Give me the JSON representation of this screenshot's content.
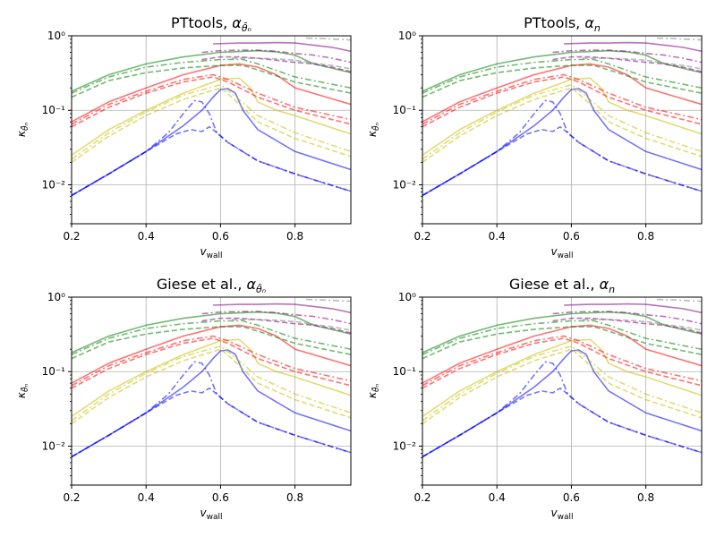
{
  "chart_data": [
    {
      "type": "line",
      "title_text": "PTtools, ",
      "title_math": "α",
      "title_sub": "θ̄ₙ",
      "xlabel_main": "v",
      "xlabel_sub": "wall",
      "ylabel_main": "κ",
      "ylabel_sub": "θ̄ₙ",
      "xlim": [
        0.2,
        0.95
      ],
      "ylim": [
        0.003,
        1.0
      ],
      "yscale": "log",
      "grid": true,
      "xticks": [
        "0.2",
        "0.4",
        "0.6",
        "0.8"
      ],
      "yticks": [
        "10⁻²",
        "10⁻¹",
        "10⁰"
      ]
    },
    {
      "type": "line",
      "title_text": "PTtools, ",
      "title_math": "α",
      "title_sub": "n",
      "xlabel_main": "v",
      "xlabel_sub": "wall",
      "ylabel_main": "κ",
      "ylabel_sub": "θ̄ₙ",
      "xlim": [
        0.2,
        0.95
      ],
      "ylim": [
        0.003,
        1.0
      ],
      "yscale": "log",
      "grid": true,
      "xticks": [
        "0.2",
        "0.4",
        "0.6",
        "0.8"
      ],
      "yticks": [
        "10⁻²",
        "10⁻¹",
        "10⁰"
      ]
    },
    {
      "type": "line",
      "title_text": "Giese et al., ",
      "title_math": "α",
      "title_sub": "θ̄ₙ",
      "xlabel_main": "v",
      "xlabel_sub": "wall",
      "ylabel_main": "κ",
      "ylabel_sub": "θ̄ₙ",
      "xlim": [
        0.2,
        0.95
      ],
      "ylim": [
        0.003,
        1.0
      ],
      "yscale": "log",
      "grid": true,
      "xticks": [
        "0.2",
        "0.4",
        "0.6",
        "0.8"
      ],
      "yticks": [
        "10⁻²",
        "10⁻¹",
        "10⁰"
      ]
    },
    {
      "type": "line",
      "title_text": "Giese et al., ",
      "title_math": "α",
      "title_sub": "n",
      "xlabel_main": "v",
      "xlabel_sub": "wall",
      "ylabel_main": "κ",
      "ylabel_sub": "θ̄ₙ",
      "xlim": [
        0.2,
        0.95
      ],
      "ylim": [
        0.003,
        1.0
      ],
      "yscale": "log",
      "grid": true,
      "xticks": [
        "0.2",
        "0.4",
        "0.6",
        "0.8"
      ],
      "yticks": [
        "10⁻²",
        "10⁻¹",
        "10⁰"
      ]
    }
  ],
  "series_families": [
    {
      "color": "#0000ff",
      "curves": [
        {
          "style": "solid",
          "x": [
            0.2,
            0.3,
            0.4,
            0.5,
            0.55,
            0.58,
            0.6,
            0.62,
            0.64,
            0.66,
            0.7,
            0.8,
            0.95
          ],
          "y": [
            0.0072,
            0.014,
            0.028,
            0.062,
            0.1,
            0.15,
            0.19,
            0.195,
            0.17,
            0.1,
            0.055,
            0.028,
            0.016
          ]
        },
        {
          "style": "dashed",
          "x": [
            0.2,
            0.3,
            0.4,
            0.48,
            0.52,
            0.55,
            0.57,
            0.59,
            0.62,
            0.7,
            0.8,
            0.95
          ],
          "y": [
            0.0072,
            0.014,
            0.028,
            0.048,
            0.055,
            0.052,
            0.06,
            0.05,
            0.037,
            0.021,
            0.014,
            0.0082
          ]
        },
        {
          "style": "dashdot",
          "x": [
            0.2,
            0.3,
            0.4,
            0.46,
            0.5,
            0.53,
            0.55,
            0.57,
            0.59,
            0.62,
            0.7,
            0.8,
            0.95
          ],
          "y": [
            0.0072,
            0.014,
            0.028,
            0.05,
            0.09,
            0.135,
            0.13,
            0.09,
            0.05,
            0.037,
            0.021,
            0.014,
            0.0082
          ]
        }
      ]
    },
    {
      "color": "#c8c000",
      "curves": [
        {
          "style": "solid",
          "x": [
            0.2,
            0.3,
            0.4,
            0.5,
            0.6,
            0.65,
            0.68,
            0.7,
            0.75,
            0.8,
            0.95
          ],
          "y": [
            0.025,
            0.055,
            0.1,
            0.17,
            0.26,
            0.27,
            0.2,
            0.13,
            0.1,
            0.085,
            0.048
          ]
        },
        {
          "style": "dashed",
          "x": [
            0.2,
            0.3,
            0.4,
            0.5,
            0.6,
            0.63,
            0.7,
            0.8,
            0.95
          ],
          "y": [
            0.02,
            0.045,
            0.085,
            0.14,
            0.2,
            0.15,
            0.07,
            0.042,
            0.024
          ]
        },
        {
          "style": "dashdot",
          "x": [
            0.2,
            0.3,
            0.4,
            0.5,
            0.6,
            0.63,
            0.7,
            0.8,
            0.95
          ],
          "y": [
            0.022,
            0.05,
            0.095,
            0.16,
            0.22,
            0.17,
            0.085,
            0.05,
            0.028
          ]
        }
      ]
    },
    {
      "color": "#ff0000",
      "curves": [
        {
          "style": "solid",
          "x": [
            0.2,
            0.3,
            0.4,
            0.5,
            0.6,
            0.65,
            0.7,
            0.75,
            0.8,
            0.95
          ],
          "y": [
            0.07,
            0.13,
            0.2,
            0.3,
            0.4,
            0.42,
            0.38,
            0.3,
            0.2,
            0.12
          ]
        },
        {
          "style": "dashed",
          "x": [
            0.2,
            0.3,
            0.4,
            0.5,
            0.58,
            0.62,
            0.7,
            0.8,
            0.95
          ],
          "y": [
            0.06,
            0.11,
            0.17,
            0.24,
            0.28,
            0.24,
            0.15,
            0.1,
            0.065
          ]
        },
        {
          "style": "dashdot",
          "x": [
            0.2,
            0.3,
            0.4,
            0.5,
            0.58,
            0.62,
            0.7,
            0.8,
            0.95
          ],
          "y": [
            0.065,
            0.12,
            0.18,
            0.26,
            0.3,
            0.26,
            0.17,
            0.11,
            0.075
          ]
        }
      ]
    },
    {
      "color": "#008000",
      "curves": [
        {
          "style": "solid",
          "x": [
            0.2,
            0.3,
            0.4,
            0.5,
            0.6,
            0.7,
            0.75,
            0.8,
            0.85,
            0.95
          ],
          "y": [
            0.18,
            0.3,
            0.42,
            0.52,
            0.6,
            0.63,
            0.61,
            0.55,
            0.42,
            0.32
          ]
        },
        {
          "style": "dashed",
          "x": [
            0.2,
            0.3,
            0.4,
            0.5,
            0.6,
            0.66,
            0.7,
            0.8,
            0.95
          ],
          "y": [
            0.15,
            0.25,
            0.32,
            0.37,
            0.4,
            0.4,
            0.35,
            0.24,
            0.17
          ]
        },
        {
          "style": "dashdot",
          "x": [
            0.2,
            0.3,
            0.4,
            0.5,
            0.6,
            0.66,
            0.7,
            0.8,
            0.95
          ],
          "y": [
            0.17,
            0.28,
            0.38,
            0.44,
            0.48,
            0.48,
            0.42,
            0.28,
            0.2
          ]
        }
      ]
    },
    {
      "color": "#800080",
      "curves": [
        {
          "style": "solid",
          "x": [
            0.58,
            0.65,
            0.7,
            0.75,
            0.8,
            0.85,
            0.9,
            0.95
          ],
          "y": [
            0.78,
            0.8,
            0.8,
            0.81,
            0.8,
            0.75,
            0.7,
            0.62
          ]
        },
        {
          "style": "dashed",
          "x": [
            0.55,
            0.6,
            0.65,
            0.7,
            0.75,
            0.8,
            0.85,
            0.9,
            0.95
          ],
          "y": [
            0.48,
            0.52,
            0.52,
            0.5,
            0.47,
            0.44,
            0.42,
            0.38,
            0.33
          ]
        },
        {
          "style": "dashdot",
          "x": [
            0.55,
            0.6,
            0.65,
            0.7,
            0.75,
            0.8,
            0.85,
            0.9,
            0.95
          ],
          "y": [
            0.6,
            0.63,
            0.64,
            0.64,
            0.62,
            0.58,
            0.55,
            0.5,
            0.44
          ]
        }
      ]
    },
    {
      "color": "#808080",
      "curves": [
        {
          "style": "dashed",
          "x": [
            0.63,
            0.7,
            0.75,
            0.8,
            0.85,
            0.9,
            0.95
          ],
          "y": [
            0.5,
            0.5,
            0.49,
            0.47,
            0.43,
            0.4,
            0.36
          ]
        },
        {
          "style": "dashdot",
          "x": [
            0.83,
            0.87,
            0.91,
            0.95
          ],
          "y": [
            0.93,
            0.92,
            0.9,
            0.88
          ]
        }
      ]
    }
  ]
}
